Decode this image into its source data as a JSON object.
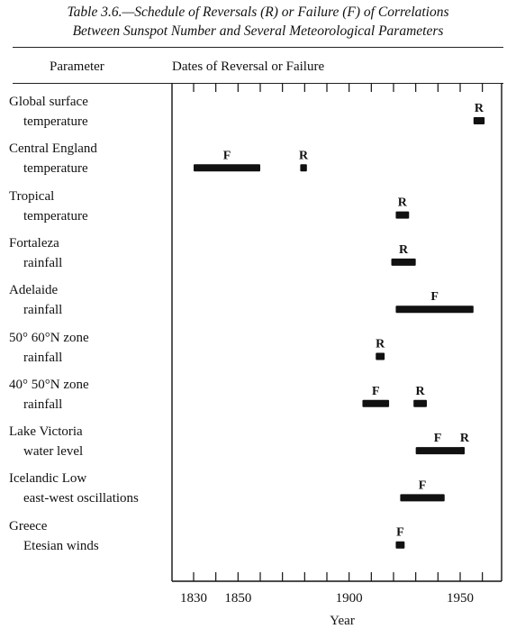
{
  "title_line1": "Table 3.6.—Schedule of Reversals (R) or Failure (F) of Correlations",
  "title_line2": "Between Sunspot Number and Several Meteorological Parameters",
  "header": {
    "parameter": "Parameter",
    "dates": "Dates of Reversal or Failure"
  },
  "chart_data": {
    "type": "table",
    "xlabel": "Year",
    "xlim": [
      1829,
      1968
    ],
    "tick_labels": [
      "1830",
      "1850",
      "1900",
      "1950"
    ],
    "tick_values": [
      1830,
      1850,
      1900,
      1950
    ],
    "minor_ticks": [
      1830,
      1840,
      1850,
      1860,
      1870,
      1880,
      1890,
      1900,
      1910,
      1920,
      1930,
      1940,
      1950,
      1960
    ],
    "rows": [
      {
        "line1": "Global surface",
        "line2": "temperature",
        "events": [
          {
            "type": "R",
            "start": 1956,
            "end": 1961
          }
        ]
      },
      {
        "line1": "Central England",
        "line2": "temperature",
        "events": [
          {
            "type": "F",
            "start": 1830,
            "end": 1860
          },
          {
            "type": "R",
            "start": 1878,
            "end": 1881
          }
        ]
      },
      {
        "line1": "Tropical",
        "line2": "temperature",
        "events": [
          {
            "type": "R",
            "start": 1921,
            "end": 1927
          }
        ]
      },
      {
        "line1": "Fortaleza",
        "line2": "rainfall",
        "events": [
          {
            "type": "R",
            "start": 1919,
            "end": 1930
          }
        ]
      },
      {
        "line1": "Adelaide",
        "line2": "rainfall",
        "events": [
          {
            "type": "F",
            "start": 1921,
            "end": 1956
          }
        ]
      },
      {
        "line1": "50°  60°N zone",
        "line2": "rainfall",
        "events": [
          {
            "type": "R",
            "start": 1912,
            "end": 1916
          }
        ]
      },
      {
        "line1": "40°  50°N zone",
        "line2": "rainfall",
        "events": [
          {
            "type": "F",
            "start": 1906,
            "end": 1918
          },
          {
            "type": "R",
            "start": 1929,
            "end": 1935
          }
        ]
      },
      {
        "line1": "Lake Victoria",
        "line2": "water level",
        "events": [
          {
            "type": "F",
            "start": 1930,
            "end": 1952
          },
          {
            "type": "R",
            "start": 1950,
            "end": 1952
          }
        ]
      },
      {
        "line1": "Icelandic Low",
        "line2": "east-west oscillations",
        "events": [
          {
            "type": "F",
            "start": 1923,
            "end": 1943
          }
        ]
      },
      {
        "line1": "Greece",
        "line2": "Etesian winds",
        "events": [
          {
            "type": "F",
            "start": 1921,
            "end": 1925
          }
        ]
      }
    ]
  }
}
